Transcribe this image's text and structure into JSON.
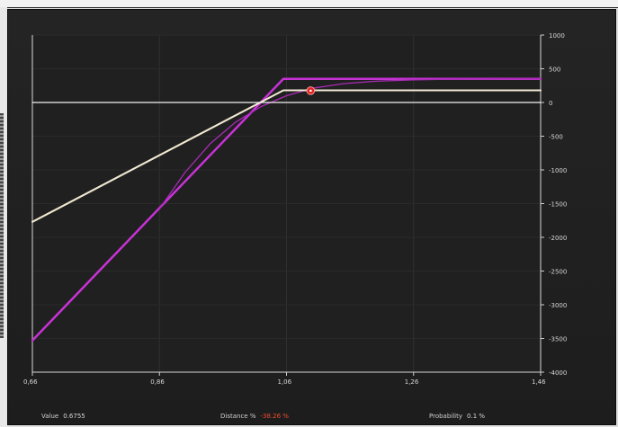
{
  "chart_data": {
    "type": "line",
    "title": "",
    "xlabel": "",
    "ylabel": "",
    "xlim": [
      0.66,
      1.46
    ],
    "ylim": [
      -4000,
      1000
    ],
    "x_ticks": [
      "0,66",
      "0,86",
      "1,06",
      "1,26",
      "1,46"
    ],
    "y_ticks": [
      "1000",
      "500",
      "0",
      "-500",
      "-1000",
      "-1500",
      "-2000",
      "-2500",
      "-3000",
      "-3500",
      "-4000"
    ],
    "grid": true,
    "background": "#202020",
    "series": [
      {
        "style": "thick",
        "color": "#c832d6",
        "points": [
          [
            0.66,
            -3530
          ],
          [
            1.055,
            350
          ],
          [
            1.46,
            350
          ]
        ]
      },
      {
        "style": "thin",
        "color": "#a92bb6",
        "points": [
          [
            0.86,
            -1580
          ],
          [
            0.9,
            -1040
          ],
          [
            0.94,
            -610
          ],
          [
            0.98,
            -290
          ],
          [
            1.02,
            -60
          ],
          [
            1.06,
            100
          ],
          [
            1.1,
            210
          ],
          [
            1.15,
            280
          ],
          [
            1.2,
            315
          ],
          [
            1.26,
            335
          ],
          [
            1.32,
            345
          ],
          [
            1.46,
            350
          ]
        ]
      },
      {
        "style": "medium",
        "color": "#f0e9d2",
        "points": [
          [
            0.66,
            -1770
          ],
          [
            1.055,
            180
          ],
          [
            1.46,
            180
          ]
        ]
      },
      {
        "style": "zero",
        "color": "#f4f4f4",
        "points": [
          [
            0.66,
            0
          ],
          [
            1.46,
            0
          ]
        ]
      }
    ],
    "marker": {
      "x": 1.098,
      "y": 175,
      "color": "#e62020"
    }
  },
  "status": {
    "value_label": "Value",
    "value": "0.6755",
    "distance_label": "Distance %",
    "distance": "-38.26 %",
    "probability_label": "Probability",
    "probability": "0.1 %"
  }
}
